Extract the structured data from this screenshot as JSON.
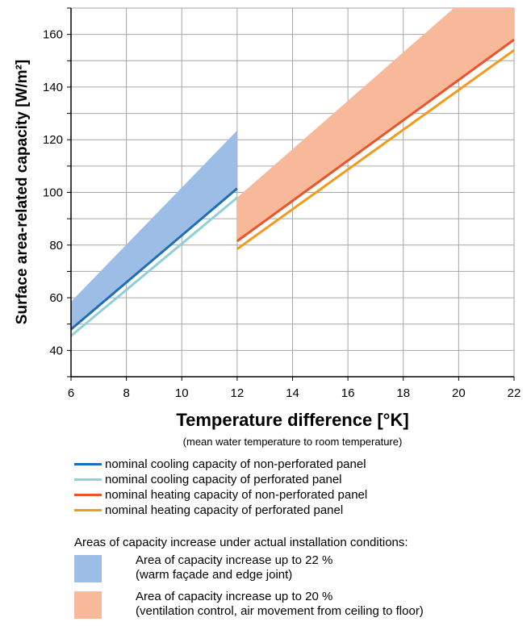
{
  "chart_data": {
    "type": "line",
    "xlabel": "Temperature difference [°K]",
    "xlabel_note": "(mean water temperature to room temperature)",
    "ylabel": "Surface area-related capacity [W/m²]",
    "xlim": [
      6,
      22
    ],
    "ylim": [
      30,
      170
    ],
    "xticks": [
      6,
      8,
      10,
      12,
      14,
      16,
      18,
      20,
      22
    ],
    "yticks": [
      40,
      60,
      80,
      100,
      120,
      140,
      160
    ],
    "grid": true,
    "series": [
      {
        "name": "nominal cooling capacity of non-perforated panel",
        "color": "#1f6db5",
        "x": [
          6,
          12
        ],
        "y": [
          48,
          101.5
        ]
      },
      {
        "name": "nominal cooling capacity of perforated panel",
        "color": "#8fd0d8",
        "x": [
          6,
          12
        ],
        "y": [
          45.5,
          98
        ]
      },
      {
        "name": "nominal heating capacity of non-perforated panel",
        "color": "#e8552a",
        "x": [
          12,
          22
        ],
        "y": [
          81.5,
          158
        ]
      },
      {
        "name": "nominal heating capacity of perforated panel",
        "color": "#f39a1c",
        "x": [
          12,
          22
        ],
        "y": [
          78.5,
          154
        ]
      }
    ],
    "areas": [
      {
        "name": "Area of capacity increase up to 22 %",
        "note": "(warm façade and edge joint)",
        "color": "#9bbde6",
        "x": [
          6,
          12
        ],
        "upper": [
          58.5,
          123.5
        ],
        "base_series": 0
      },
      {
        "name": "Area of capacity increase up to 20 %",
        "note": "(ventilation control, air movement from ceiling to floor)",
        "color": "#f7b999",
        "x": [
          12,
          22
        ],
        "upper": [
          98,
          190
        ],
        "base_series": 2
      }
    ],
    "areas_title": "Areas of capacity increase under actual installation conditions:"
  }
}
